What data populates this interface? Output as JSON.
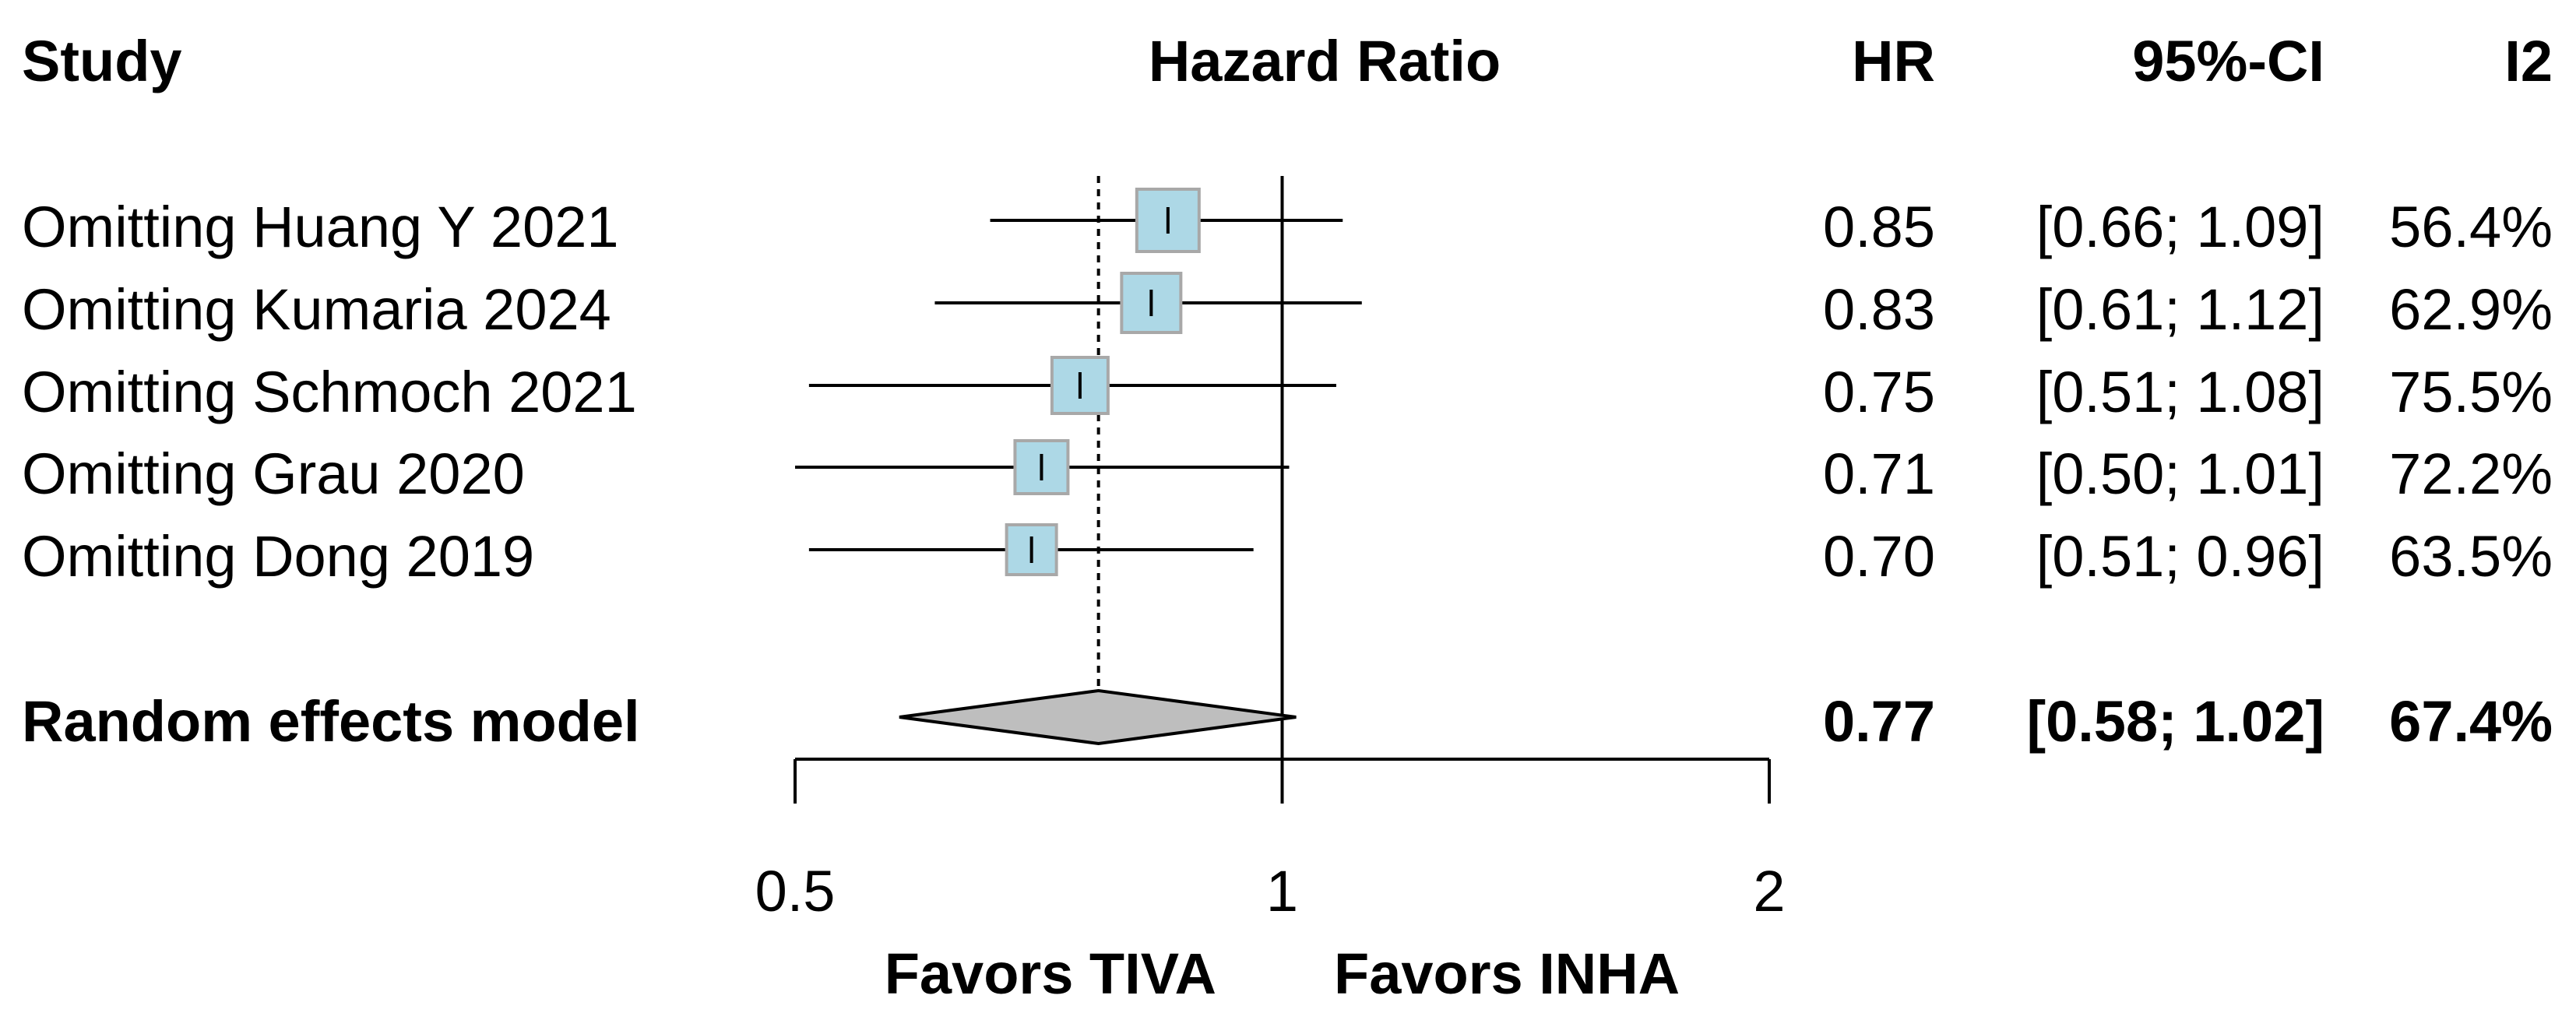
{
  "chart_data": {
    "type": "forest",
    "measure": "Hazard Ratio",
    "scale": "log",
    "xlim": [
      0.5,
      2
    ],
    "xticks": [
      0.5,
      1,
      2
    ],
    "xtick_labels": [
      "0.5",
      "1",
      "2"
    ],
    "reference_line": 1,
    "summary_line": 0.77,
    "headers": {
      "study": "Study",
      "plot": "Hazard Ratio",
      "hr": "HR",
      "ci": "95%-CI",
      "i2": "I2"
    },
    "studies": [
      {
        "label": "Omitting Huang Y 2021",
        "hr": 0.85,
        "lower": 0.66,
        "upper": 1.09,
        "hr_text": "0.85",
        "ci_text": "[0.66; 1.09]",
        "i2_text": "56.4%"
      },
      {
        "label": "Omitting Kumaria 2024",
        "hr": 0.83,
        "lower": 0.61,
        "upper": 1.12,
        "hr_text": "0.83",
        "ci_text": "[0.61; 1.12]",
        "i2_text": "62.9%"
      },
      {
        "label": "Omitting Schmoch 2021",
        "hr": 0.75,
        "lower": 0.51,
        "upper": 1.08,
        "hr_text": "0.75",
        "ci_text": "[0.51; 1.08]",
        "i2_text": "75.5%"
      },
      {
        "label": "Omitting Grau 2020",
        "hr": 0.71,
        "lower": 0.5,
        "upper": 1.01,
        "hr_text": "0.71",
        "ci_text": "[0.50; 1.01]",
        "i2_text": "72.2%"
      },
      {
        "label": "Omitting Dong 2019",
        "hr": 0.7,
        "lower": 0.51,
        "upper": 0.96,
        "hr_text": "0.70",
        "ci_text": "[0.51; 0.96]",
        "i2_text": "63.5%"
      }
    ],
    "summary": {
      "label": "Random effects model",
      "hr": 0.77,
      "lower": 0.58,
      "upper": 1.02,
      "hr_text": "0.77",
      "ci_text": "[0.58; 1.02]",
      "i2_text": "67.4%"
    },
    "favors": {
      "left": "Favors TIVA",
      "right": "Favors INHA"
    },
    "colors": {
      "square_fill": "#add8e6",
      "square_stroke": "#a8a8a8",
      "diamond_fill": "#bebebe",
      "line": "#000000"
    }
  }
}
